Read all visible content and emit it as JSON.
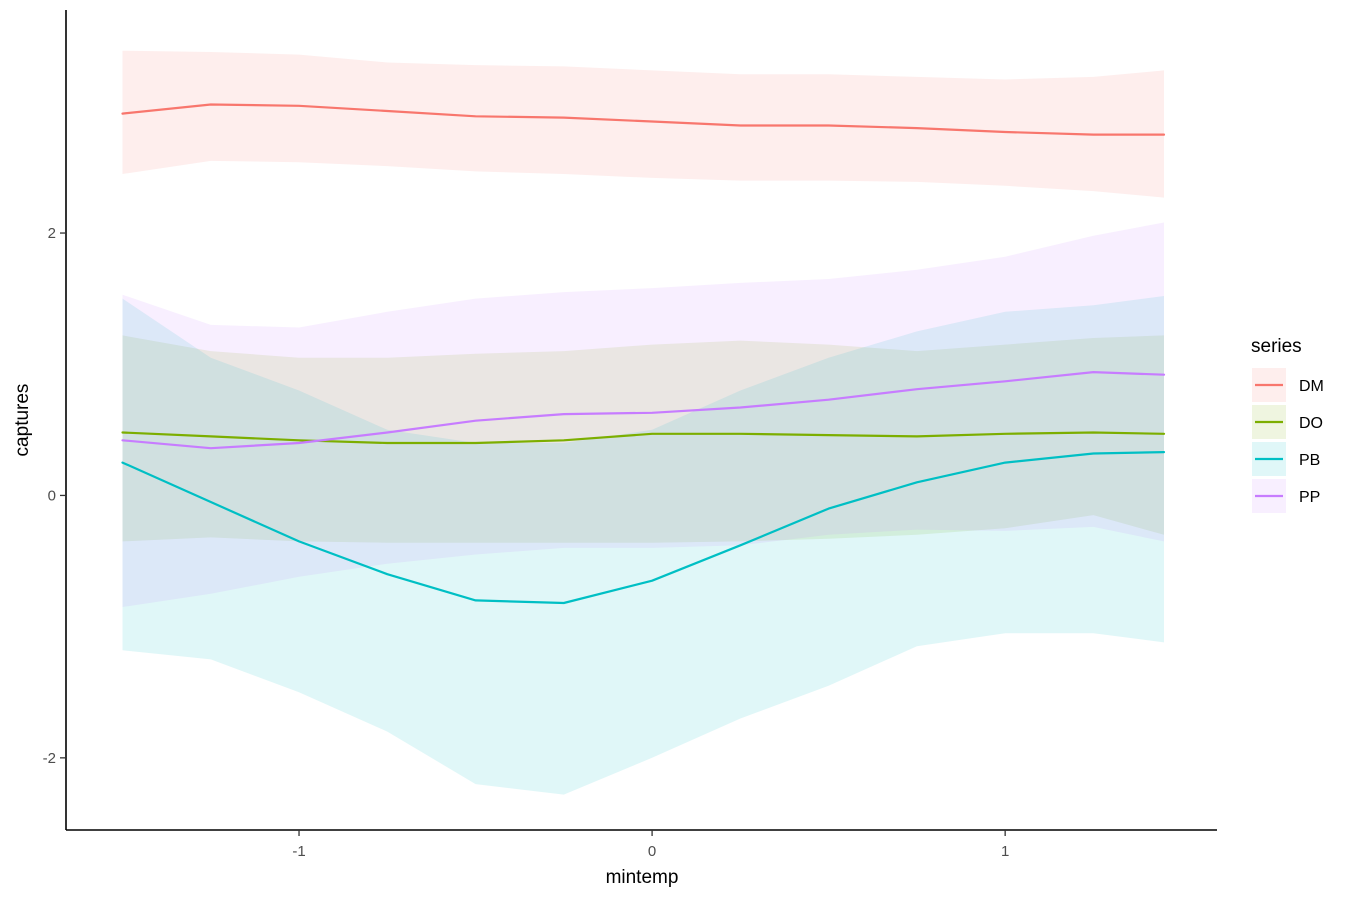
{
  "chart_data": {
    "type": "line",
    "xlabel": "mintemp",
    "ylabel": "captures",
    "xlim": [
      -1.66,
      1.6
    ],
    "ylim": [
      -2.55,
      3.7
    ],
    "x_ticks": [
      -1,
      0,
      1
    ],
    "x_tick_labels": [
      "-1",
      "0",
      "1"
    ],
    "y_ticks": [
      -2,
      0,
      2
    ],
    "y_tick_labels": [
      "-2",
      "0",
      "2"
    ],
    "grid": false,
    "legend": {
      "title": "series",
      "position": "right"
    },
    "x": [
      -1.5,
      -1.25,
      -1.0,
      -0.75,
      -0.5,
      -0.25,
      0.0,
      0.25,
      0.5,
      0.75,
      1.0,
      1.25,
      1.45
    ],
    "series": [
      {
        "name": "DM",
        "color": "#F8766D",
        "values": [
          2.91,
          2.98,
          2.97,
          2.93,
          2.89,
          2.88,
          2.85,
          2.82,
          2.82,
          2.8,
          2.77,
          2.75,
          2.75
        ],
        "lower": [
          2.45,
          2.55,
          2.54,
          2.51,
          2.47,
          2.45,
          2.42,
          2.4,
          2.4,
          2.39,
          2.36,
          2.32,
          2.27
        ],
        "upper": [
          3.39,
          3.38,
          3.36,
          3.3,
          3.28,
          3.27,
          3.24,
          3.21,
          3.21,
          3.19,
          3.17,
          3.19,
          3.24
        ]
      },
      {
        "name": "DO",
        "color": "#7CAE00",
        "values": [
          0.48,
          0.45,
          0.42,
          0.4,
          0.4,
          0.42,
          0.47,
          0.47,
          0.46,
          0.45,
          0.47,
          0.48,
          0.47
        ],
        "lower": [
          -0.35,
          -0.32,
          -0.35,
          -0.36,
          -0.36,
          -0.36,
          -0.36,
          -0.35,
          -0.33,
          -0.3,
          -0.25,
          -0.15,
          -0.3
        ],
        "upper": [
          1.22,
          1.1,
          1.05,
          1.05,
          1.08,
          1.1,
          1.15,
          1.18,
          1.15,
          1.1,
          1.15,
          1.2,
          1.22
        ]
      },
      {
        "name": "PB",
        "color": "#00BFC4",
        "values": [
          0.25,
          -0.05,
          -0.35,
          -0.6,
          -0.8,
          -0.82,
          -0.65,
          -0.38,
          -0.1,
          0.1,
          0.25,
          0.32,
          0.33
        ],
        "lower": [
          -1.18,
          -1.25,
          -1.5,
          -1.8,
          -2.2,
          -2.28,
          -2.0,
          -1.7,
          -1.45,
          -1.15,
          -1.05,
          -1.05,
          -1.12
        ],
        "upper": [
          1.5,
          1.05,
          0.8,
          0.5,
          0.4,
          0.4,
          0.5,
          0.8,
          1.05,
          1.25,
          1.4,
          1.45,
          1.52
        ]
      },
      {
        "name": "PP",
        "color": "#C77CFF",
        "values": [
          0.42,
          0.36,
          0.4,
          0.48,
          0.57,
          0.62,
          0.63,
          0.67,
          0.73,
          0.81,
          0.87,
          0.94,
          0.92
        ],
        "lower": [
          -0.85,
          -0.75,
          -0.62,
          -0.52,
          -0.45,
          -0.4,
          -0.4,
          -0.38,
          -0.3,
          -0.26,
          -0.27,
          -0.24,
          -0.35
        ],
        "upper": [
          1.53,
          1.3,
          1.28,
          1.4,
          1.5,
          1.55,
          1.58,
          1.62,
          1.65,
          1.72,
          1.82,
          1.98,
          2.08
        ]
      }
    ]
  }
}
